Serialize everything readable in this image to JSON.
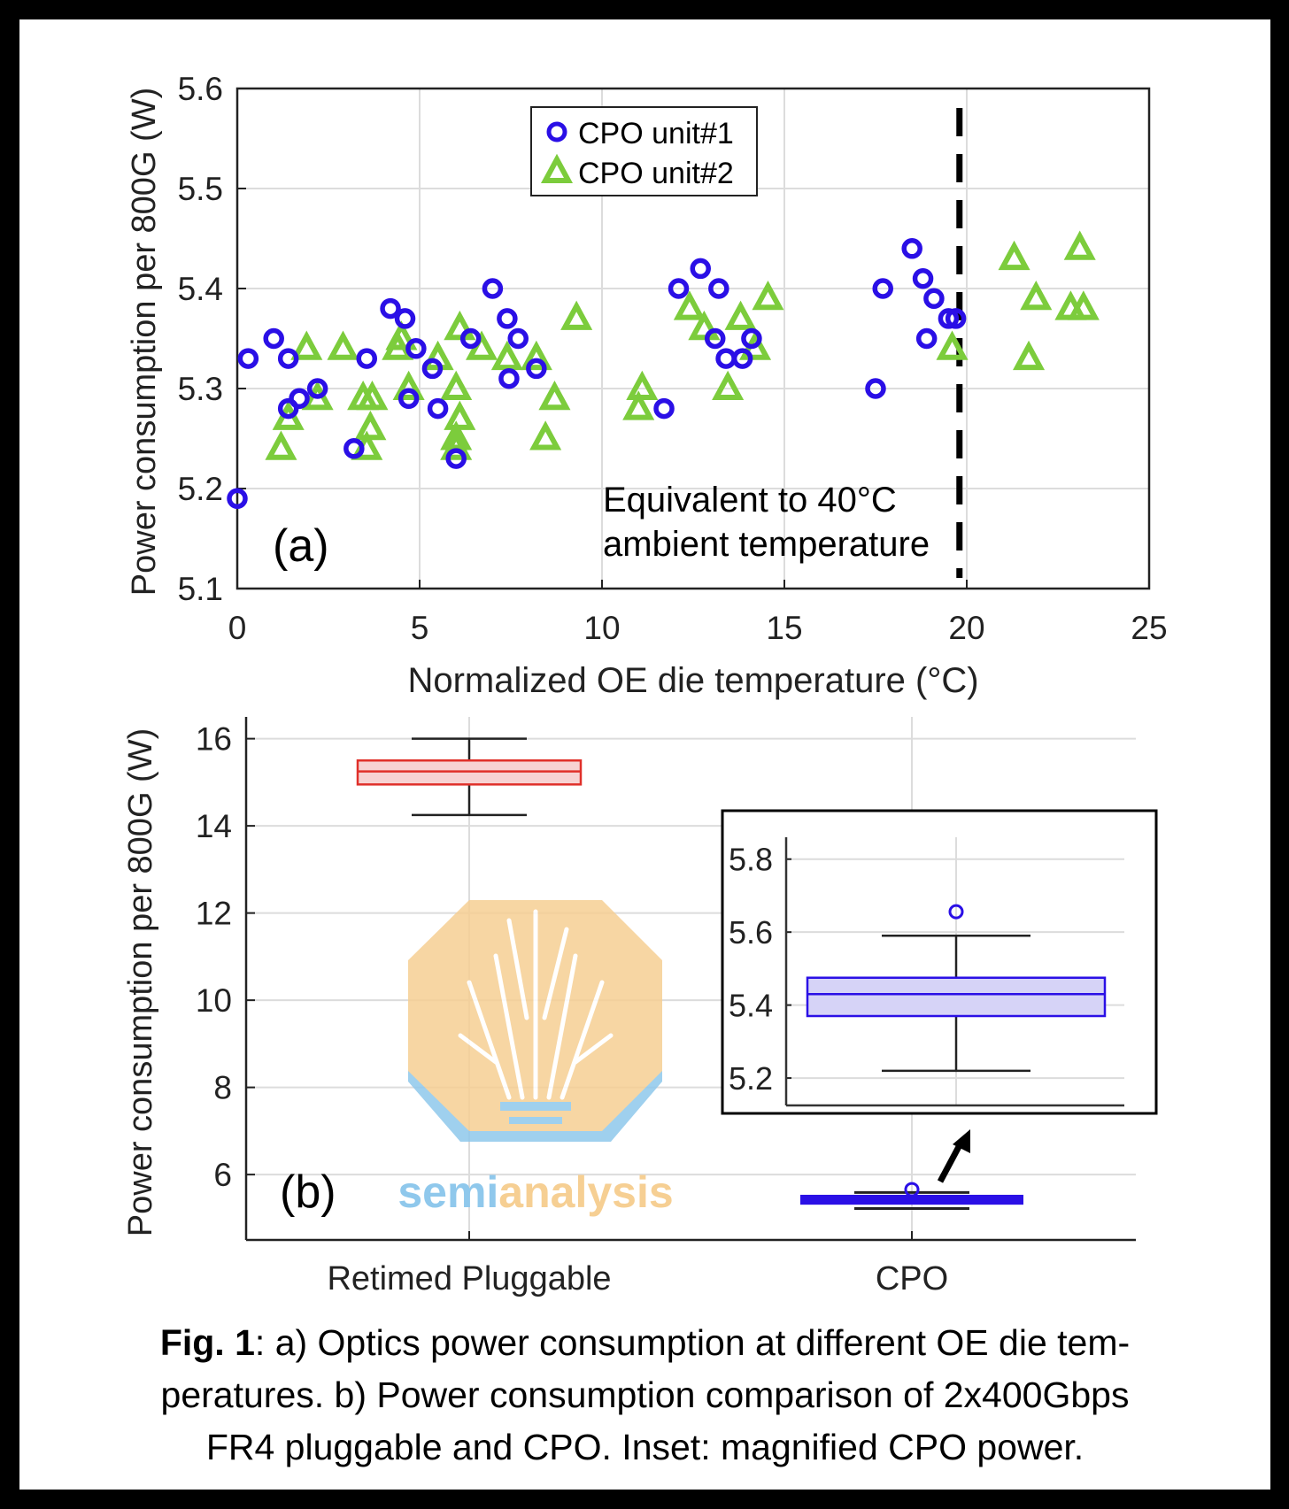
{
  "chart_data": [
    {
      "type": "scatter",
      "panel_label": "(a)",
      "xlabel": "Normalized OE die temperature (°C)",
      "xlabel_parts": [
        "Normalized OE die temperature (",
        "o",
        "C)"
      ],
      "ylabel": "Power consumption per 800G (W)",
      "xlim": [
        0,
        25
      ],
      "ylim": [
        5.1,
        5.6
      ],
      "xticks": [
        0,
        5,
        10,
        15,
        20,
        25
      ],
      "yticks": [
        5.1,
        5.2,
        5.3,
        5.4,
        5.5,
        5.6
      ],
      "grid": true,
      "legend_position": "top-center",
      "annotation": {
        "lines": [
          "Equivalent to 40°C",
          "ambient temperature"
        ],
        "vline_x": 19.8
      },
      "colors": {
        "unit1": "#2a0fe6",
        "unit2": "#7ccc3c"
      },
      "series": [
        {
          "name": "CPO unit#1",
          "marker": "circle",
          "points": [
            [
              0,
              5.19
            ],
            [
              0.3,
              5.33
            ],
            [
              1.0,
              5.35
            ],
            [
              1.4,
              5.33
            ],
            [
              1.4,
              5.28
            ],
            [
              1.7,
              5.29
            ],
            [
              2.2,
              5.3
            ],
            [
              3.2,
              5.24
            ],
            [
              3.55,
              5.33
            ],
            [
              4.2,
              5.38
            ],
            [
              4.6,
              5.37
            ],
            [
              4.7,
              5.29
            ],
            [
              4.9,
              5.34
            ],
            [
              5.35,
              5.32
            ],
            [
              5.5,
              5.28
            ],
            [
              6.0,
              5.23
            ],
            [
              6.4,
              5.35
            ],
            [
              7.0,
              5.4
            ],
            [
              7.4,
              5.37
            ],
            [
              7.45,
              5.31
            ],
            [
              7.7,
              5.35
            ],
            [
              8.2,
              5.32
            ],
            [
              11.7,
              5.28
            ],
            [
              12.1,
              5.4
            ],
            [
              12.7,
              5.42
            ],
            [
              13.2,
              5.4
            ],
            [
              13.1,
              5.35
            ],
            [
              13.4,
              5.33
            ],
            [
              13.85,
              5.33
            ],
            [
              14.1,
              5.35
            ],
            [
              17.5,
              5.3
            ],
            [
              17.7,
              5.4
            ],
            [
              18.5,
              5.44
            ],
            [
              18.8,
              5.41
            ],
            [
              18.9,
              5.35
            ],
            [
              19.1,
              5.39
            ],
            [
              19.5,
              5.37
            ],
            [
              19.7,
              5.37
            ]
          ]
        },
        {
          "name": "CPO unit#2",
          "marker": "triangle",
          "points": [
            [
              1.2,
              5.24
            ],
            [
              1.4,
              5.27
            ],
            [
              1.9,
              5.34
            ],
            [
              2.2,
              5.29
            ],
            [
              2.9,
              5.34
            ],
            [
              3.45,
              5.29
            ],
            [
              3.55,
              5.24
            ],
            [
              3.65,
              5.26
            ],
            [
              3.7,
              5.29
            ],
            [
              4.4,
              5.34
            ],
            [
              4.5,
              5.35
            ],
            [
              4.7,
              5.3
            ],
            [
              5.5,
              5.33
            ],
            [
              6.0,
              5.3
            ],
            [
              6.0,
              5.25
            ],
            [
              6.0,
              5.24
            ],
            [
              6.1,
              5.27
            ],
            [
              6.1,
              5.36
            ],
            [
              6.7,
              5.34
            ],
            [
              7.4,
              5.33
            ],
            [
              8.2,
              5.33
            ],
            [
              8.45,
              5.25
            ],
            [
              8.7,
              5.29
            ],
            [
              9.3,
              5.37
            ],
            [
              11.1,
              5.3
            ],
            [
              11.0,
              5.28
            ],
            [
              12.4,
              5.38
            ],
            [
              12.8,
              5.36
            ],
            [
              13.45,
              5.3
            ],
            [
              13.8,
              5.37
            ],
            [
              14.2,
              5.34
            ],
            [
              14.55,
              5.39
            ],
            [
              19.6,
              5.34
            ],
            [
              21.3,
              5.43
            ],
            [
              21.7,
              5.33
            ],
            [
              21.9,
              5.39
            ],
            [
              22.85,
              5.38
            ],
            [
              23.1,
              5.44
            ],
            [
              23.2,
              5.38
            ]
          ]
        }
      ]
    },
    {
      "type": "box",
      "panel_label": "(b)",
      "ylabel": "Power consumption per 800G (W)",
      "ylim": [
        4.5,
        16.5
      ],
      "yticks": [
        6,
        8,
        10,
        12,
        14,
        16
      ],
      "categories": [
        "Retimed Pluggable",
        "CPO"
      ],
      "grid": true,
      "boxes": [
        {
          "name": "Retimed Pluggable",
          "min": 14.25,
          "q1": 14.95,
          "median": 15.25,
          "q3": 15.5,
          "max": 16.0,
          "outliers": [],
          "color": "#e0302a",
          "fill": "#f7d3d3"
        },
        {
          "name": "CPO",
          "min": 5.22,
          "q1": 5.37,
          "median": 5.43,
          "q3": 5.475,
          "max": 5.59,
          "outliers": [
            5.656
          ],
          "color": "#2a0fe6",
          "fill": "#d6d3f7"
        }
      ],
      "inset": {
        "title": "magnified CPO power",
        "ylim": [
          5.125,
          5.86
        ],
        "yticks": [
          5.2,
          5.4,
          5.6,
          5.8
        ]
      }
    }
  ],
  "watermark": {
    "part1": "semi",
    "part2": "analysis",
    "color1": "#8fc8ec",
    "color2": "#f6cf93"
  },
  "caption": {
    "fig_label": "Fig. 1",
    "line1": ": a) Optics power consumption at different OE die tem-",
    "line2": "peratures. b) Power consumption comparison of 2x400Gbps",
    "line3": "FR4 pluggable and CPO. Inset: magnified CPO power."
  }
}
